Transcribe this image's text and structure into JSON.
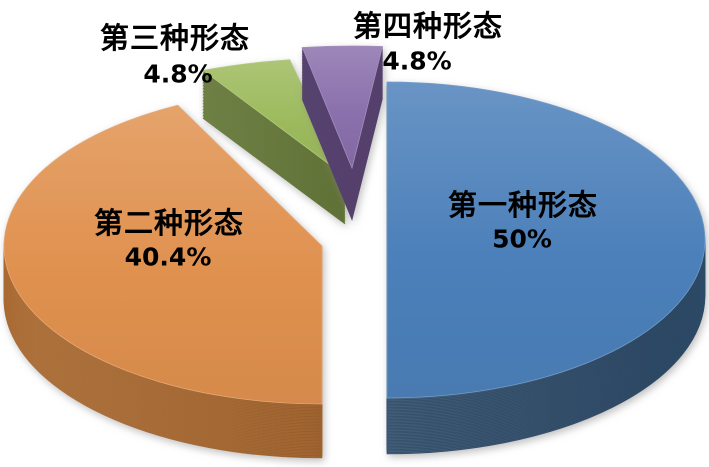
{
  "page": {
    "background": "#ffffff"
  },
  "chart_data": {
    "type": "pie",
    "style": "3d-exploded",
    "start_angle_deg": 0,
    "direction": "clockwise",
    "legend": "none",
    "grid": "off",
    "background": "#ffffff",
    "label_color": "#000000",
    "slices": [
      {
        "label": "第一种形态",
        "value": 50,
        "value_label": "50%",
        "color": "#4c80ba",
        "side_color": "#2e4b68"
      },
      {
        "label": "第二种形态",
        "value": 40.4,
        "value_label": "40.4%",
        "color": "#e0914f",
        "side_color": "#a96a32"
      },
      {
        "label": "第三种形态",
        "value": 4.8,
        "value_label": "4.8%",
        "color": "#9cba5c",
        "side_color": "#66793a"
      },
      {
        "label": "第四种形态",
        "value": 4.8,
        "value_label": "4.8%",
        "color": "#8a70ac",
        "side_color": "#55416d"
      }
    ]
  }
}
